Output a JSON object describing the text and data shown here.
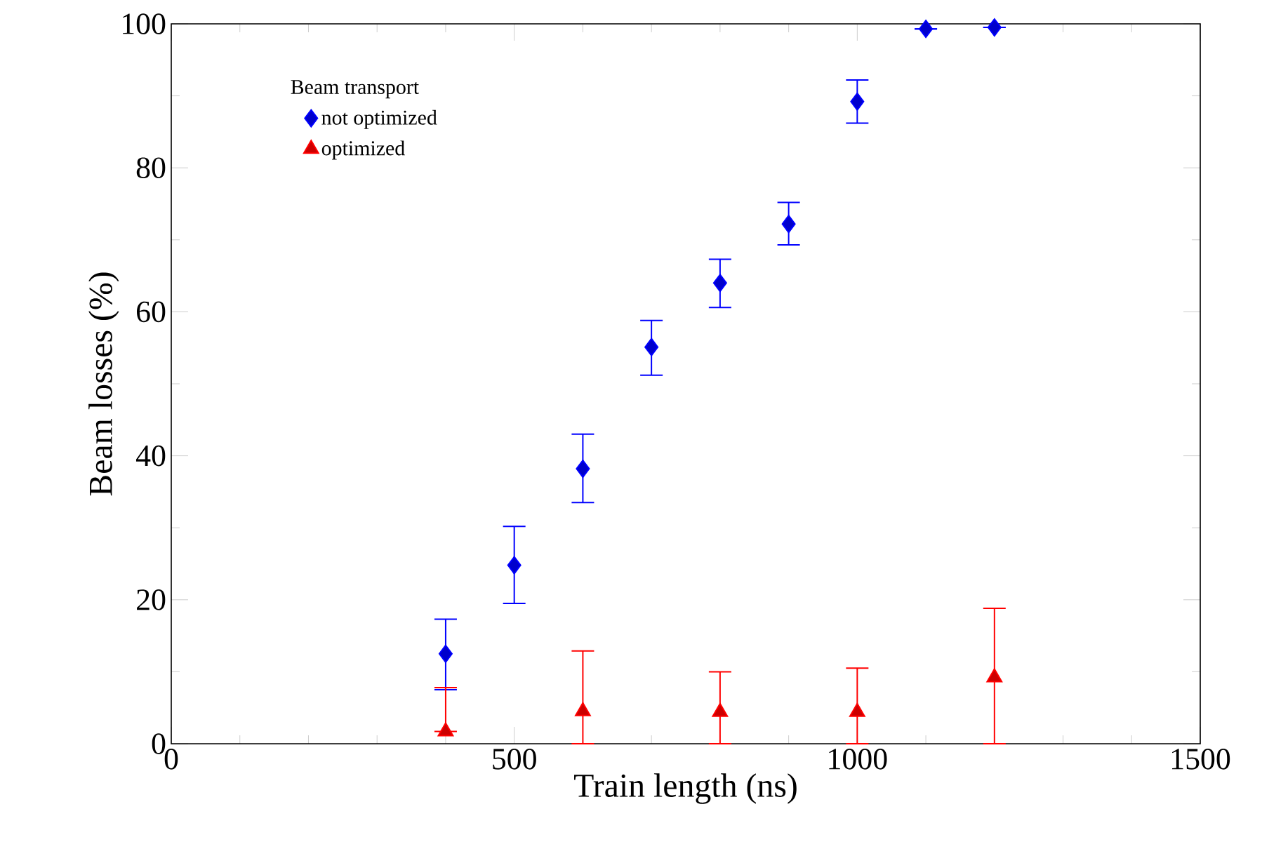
{
  "chart_data": {
    "type": "scatter",
    "xlabel": "Train length (ns)",
    "ylabel": "Beam losses (%)",
    "legend_title": "Beam transport",
    "legend": "top left",
    "grid": false,
    "xlim": [
      0,
      1500
    ],
    "ylim": [
      0,
      100
    ],
    "xticks": [
      0,
      500,
      1000,
      1500
    ],
    "yticks": [
      0,
      20,
      40,
      60,
      80,
      100
    ],
    "series": [
      {
        "name": "not optimized",
        "color": "#0000ff",
        "marker": "diamond",
        "x": [
          400,
          500,
          600,
          700,
          800,
          900,
          1000,
          1100,
          1200
        ],
        "values": [
          12.5,
          24.8,
          38.2,
          55.1,
          64,
          72.2,
          89.2,
          99.3,
          99.5
        ],
        "errors": [
          [
            7.5,
            17.3
          ],
          [
            19.5,
            30.2
          ],
          [
            33.5,
            43
          ],
          [
            51.2,
            58.8
          ],
          [
            60.6,
            67.3
          ],
          [
            69.3,
            75.2
          ],
          [
            86.2,
            92.2
          ],
          null,
          null
        ]
      },
      {
        "name": "optimized",
        "color": "#ff0000",
        "marker": "triangle",
        "x": [
          400,
          600,
          800,
          1000,
          1200
        ],
        "values": [
          1.7,
          4.5,
          4.4,
          4.4,
          9.2
        ],
        "errors": [
          [
            1.7,
            7.8
          ],
          [
            0,
            12.9
          ],
          [
            0,
            10
          ],
          [
            0,
            10.5
          ],
          [
            0,
            18.8
          ]
        ]
      }
    ]
  }
}
